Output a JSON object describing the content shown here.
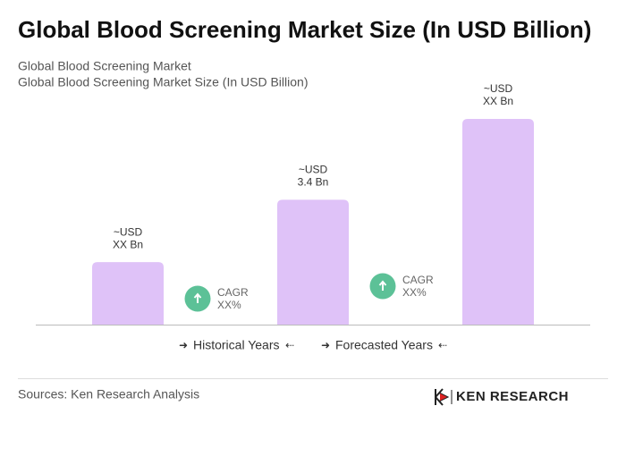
{
  "chart_data": {
    "type": "bar",
    "title": "Global Blood Screening Market Size (In USD Billion)",
    "subtitle": [
      "Global Blood Screening Market",
      "Global Blood Screening Market Size (In USD Billion)"
    ],
    "categories": [
      null,
      null,
      null
    ],
    "values": [
      1.7,
      3.4,
      5.6
    ],
    "value_labels": [
      [
        "~USD",
        "XX Bn"
      ],
      [
        "~USD",
        "3.4 Bn"
      ],
      [
        "~USD",
        "XX Bn"
      ]
    ],
    "color": "#dfc2f8",
    "annotations": [
      [
        "CAGR",
        "XX%"
      ],
      [
        "CAGR",
        "XX%"
      ]
    ],
    "legend": [
      "Historical Years",
      "Forecasted Years"
    ],
    "source": "Sources: Ken Research Analysis",
    "logo": "KEN RESEARCH"
  }
}
